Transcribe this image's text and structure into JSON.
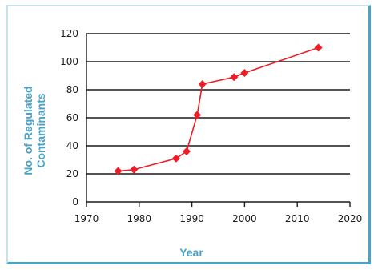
{
  "chart_data": {
    "type": "line",
    "xlabel": "Year",
    "ylabel_line1": "No. of Regulated",
    "ylabel_line2": "Contaminants",
    "xlim": [
      1970,
      2020
    ],
    "ylim": [
      0,
      120
    ],
    "x_ticks": [
      1970,
      1980,
      1990,
      2000,
      2010,
      2020
    ],
    "y_ticks": [
      0,
      20,
      40,
      60,
      80,
      100,
      120
    ],
    "grid": "horizontal",
    "series": [
      {
        "points": [
          {
            "x": 1976,
            "y": 22
          },
          {
            "x": 1979,
            "y": 23
          },
          {
            "x": 1987,
            "y": 31
          },
          {
            "x": 1989,
            "y": 36
          },
          {
            "x": 1991,
            "y": 62
          },
          {
            "x": 1992,
            "y": 84
          },
          {
            "x": 1998,
            "y": 89
          },
          {
            "x": 2000,
            "y": 92
          },
          {
            "x": 2014,
            "y": 110
          }
        ]
      }
    ],
    "colors": {
      "series": "#ee1c25",
      "axis_title": "#4aa3c7",
      "frame": "#4aa3c7"
    }
  }
}
